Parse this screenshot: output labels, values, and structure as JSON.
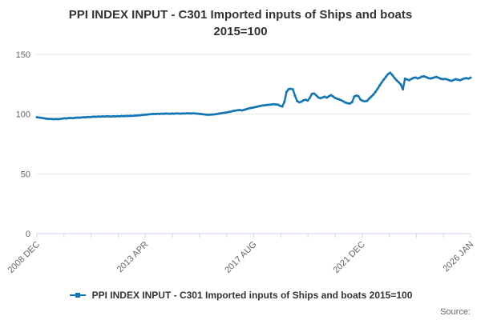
{
  "title": {
    "line1": "PPI INDEX INPUT - C301 Imported inputs of Ships and boats",
    "line2": "2015=100"
  },
  "legend": {
    "label": "PPI INDEX INPUT - C301 Imported inputs of Ships and boats 2015=100"
  },
  "source_label": "Source:",
  "colors": {
    "series": "#1075b4",
    "grid": "#e6e6e6",
    "axis": "#ccd6eb",
    "text": "#333333",
    "muted": "#666666"
  },
  "chart_data": {
    "type": "line",
    "title": "PPI INDEX INPUT - C301 Imported inputs of Ships and boats 2015=100",
    "xlabel": "",
    "ylabel": "",
    "ylim": [
      0,
      150
    ],
    "y_ticks": [
      0,
      50,
      100,
      150
    ],
    "grid": "horizontal",
    "legend_position": "bottom",
    "x_start": "2008 DEC",
    "x_end": "2026 JAN",
    "frequency": "monthly",
    "x_tick_count": 17,
    "labeled_tick_indices": [
      0,
      4,
      8,
      12,
      16
    ],
    "x_tick_labels": [
      "2008 DEC",
      "2013 APR",
      "2017 AUG",
      "2021 DEC",
      "2026 JAN"
    ],
    "series": [
      {
        "name": "PPI INDEX INPUT - C301 Imported inputs of Ships and boats 2015=100",
        "color": "#1075b4",
        "values": [
          97.4,
          97.2,
          96.9,
          96.6,
          96.3,
          96.1,
          96.0,
          95.9,
          95.8,
          95.9,
          95.8,
          96.0,
          96.3,
          96.5,
          96.4,
          96.7,
          96.8,
          96.6,
          96.9,
          97.1,
          97.0,
          97.2,
          97.4,
          97.3,
          97.6,
          97.5,
          97.7,
          97.9,
          97.8,
          98.0,
          97.9,
          98.1,
          98.0,
          98.2,
          98.1,
          98.0,
          98.2,
          98.1,
          98.3,
          98.2,
          98.4,
          98.3,
          98.5,
          98.4,
          98.6,
          98.5,
          98.7,
          98.8,
          98.9,
          99.1,
          99.3,
          99.5,
          99.6,
          99.9,
          100.0,
          100.2,
          100.1,
          100.3,
          100.2,
          100.4,
          100.3,
          100.5,
          100.4,
          100.3,
          100.5,
          100.4,
          100.6,
          100.5,
          100.4,
          100.6,
          100.5,
          100.7,
          100.6,
          100.5,
          100.7,
          100.5,
          100.4,
          100.2,
          100.0,
          99.8,
          99.6,
          99.4,
          99.5,
          99.7,
          99.8,
          100.1,
          100.4,
          100.7,
          101.0,
          101.2,
          101.5,
          101.9,
          102.3,
          102.7,
          103.0,
          103.3,
          103.4,
          103.1,
          103.6,
          104.1,
          104.7,
          105.1,
          105.4,
          105.8,
          106.2,
          106.6,
          107.0,
          107.3,
          107.5,
          107.7,
          107.9,
          108.1,
          108.3,
          108.1,
          107.9,
          107.0,
          106.4,
          110.2,
          118.6,
          120.9,
          121.2,
          120.8,
          115.4,
          111.0,
          109.9,
          110.4,
          111.6,
          112.0,
          111.3,
          113.6,
          116.9,
          117.3,
          115.8,
          114.0,
          113.3,
          113.9,
          114.6,
          113.8,
          114.9,
          115.9,
          114.8,
          113.5,
          112.8,
          112.2,
          111.5,
          110.5,
          109.6,
          109.1,
          108.9,
          110.1,
          114.7,
          115.5,
          115.0,
          112.1,
          111.1,
          110.7,
          111.0,
          112.9,
          114.6,
          116.3,
          118.5,
          121.1,
          123.9,
          126.6,
          129.0,
          131.3,
          133.5,
          134.7,
          132.7,
          130.4,
          128.3,
          126.7,
          124.9,
          120.8,
          129.7,
          129.0,
          128.4,
          129.4,
          130.3,
          130.7,
          129.9,
          130.5,
          131.4,
          131.7,
          131.0,
          130.2,
          129.8,
          130.2,
          130.8,
          131.1,
          130.3,
          129.6,
          129.2,
          129.5,
          129.0,
          128.3,
          127.9,
          128.6,
          129.2,
          128.8,
          128.4,
          129.1,
          129.8,
          130.1,
          129.7,
          130.5
        ]
      }
    ]
  }
}
